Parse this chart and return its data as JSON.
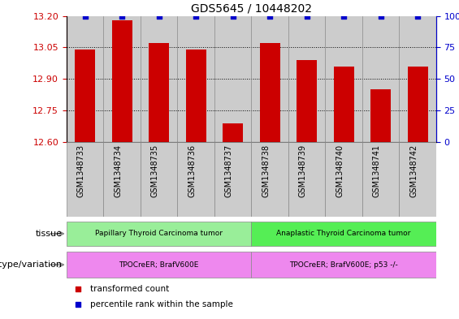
{
  "title": "GDS5645 / 10448202",
  "samples": [
    "GSM1348733",
    "GSM1348734",
    "GSM1348735",
    "GSM1348736",
    "GSM1348737",
    "GSM1348738",
    "GSM1348739",
    "GSM1348740",
    "GSM1348741",
    "GSM1348742"
  ],
  "bar_values": [
    13.04,
    13.18,
    13.07,
    13.04,
    12.69,
    13.07,
    12.99,
    12.96,
    12.85,
    12.96
  ],
  "percentile_values": [
    100,
    100,
    100,
    100,
    100,
    100,
    100,
    100,
    100,
    100
  ],
  "ylim_left": [
    12.6,
    13.2
  ],
  "ylim_right": [
    0,
    100
  ],
  "yticks_left": [
    12.6,
    12.75,
    12.9,
    13.05,
    13.2
  ],
  "yticks_right": [
    0,
    25,
    50,
    75,
    100
  ],
  "grid_values": [
    12.75,
    12.9,
    13.05
  ],
  "bar_color": "#cc0000",
  "dot_color": "#0000cc",
  "tissue_groups": [
    {
      "label": "Papillary Thyroid Carcinoma tumor",
      "start": 0,
      "end": 5,
      "color": "#99ee99"
    },
    {
      "label": "Anaplastic Thyroid Carcinoma tumor",
      "start": 5,
      "end": 10,
      "color": "#55ee55"
    }
  ],
  "genotype_groups": [
    {
      "label": "TPOCreER; BrafV600E",
      "start": 0,
      "end": 5,
      "color": "#ee88ee"
    },
    {
      "label": "TPOCreER; BrafV600E; p53 -/-",
      "start": 5,
      "end": 10,
      "color": "#ee88ee"
    }
  ],
  "tissue_label": "tissue",
  "genotype_label": "genotype/variation",
  "sample_box_color": "#cccccc",
  "legend_items": [
    {
      "color": "#cc0000",
      "label": "transformed count"
    },
    {
      "color": "#0000cc",
      "label": "percentile rank within the sample"
    }
  ],
  "background_color": "#ffffff"
}
